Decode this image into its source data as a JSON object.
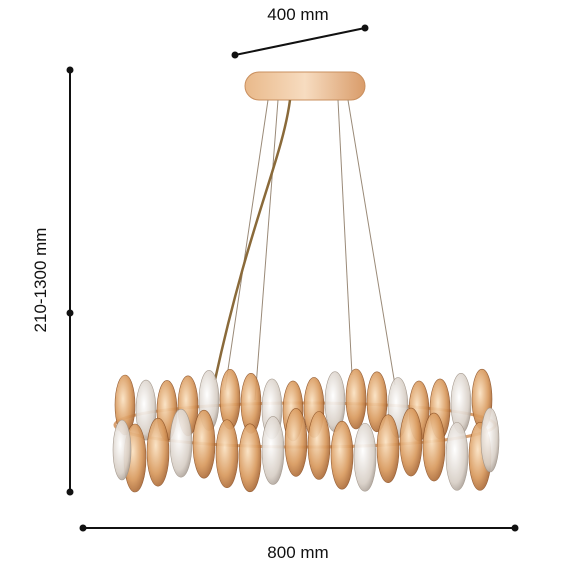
{
  "dimensions": {
    "top_width": "400 mm",
    "height": "210-1300 mm",
    "width": "800 mm"
  }
}
